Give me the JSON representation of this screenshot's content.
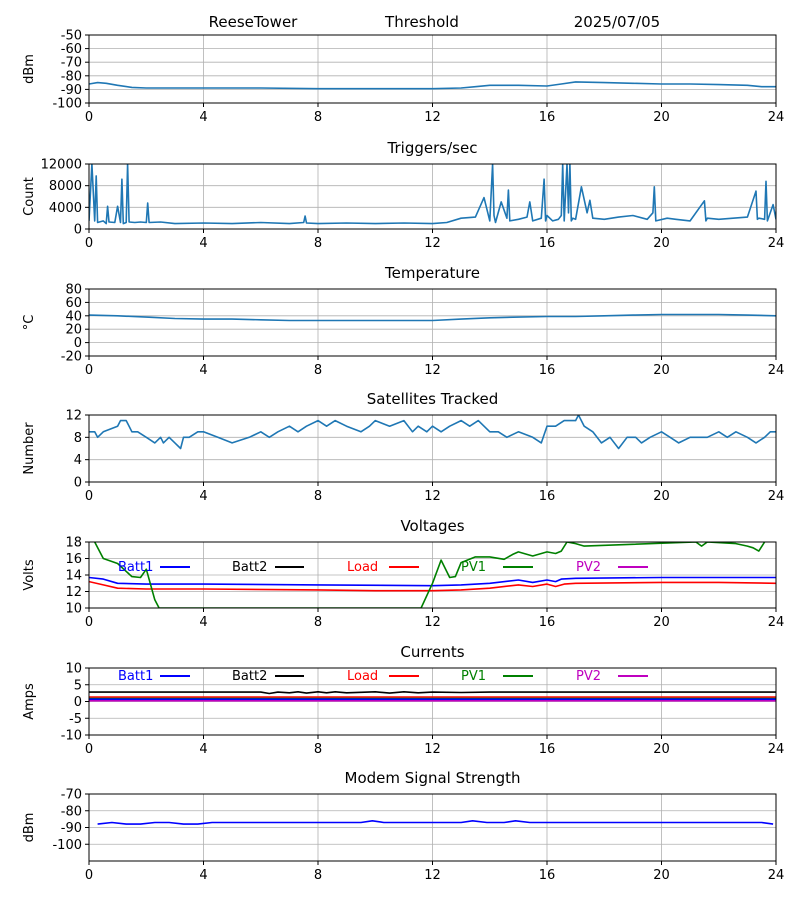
{
  "header": {
    "site": "ReeseTower",
    "label": "Threshold",
    "date": "2025/07/05"
  },
  "colors": {
    "default_line": "#1f77b4",
    "grid": "#b0b0b0",
    "Batt1": "#0000ff",
    "Batt2": "#000000",
    "Load": "#ff0000",
    "PV1": "#008000",
    "PV2": "#bf00bf"
  },
  "chart_data": [
    {
      "id": "threshold",
      "type": "line",
      "title": "",
      "ylabel": "dBm",
      "xlim": [
        0,
        24
      ],
      "ylim": [
        -100,
        -50
      ],
      "xticks": [
        "0",
        "4",
        "8",
        "12",
        "16",
        "20",
        "24"
      ],
      "yticks": [
        "-50",
        "-60",
        "-70",
        "-80",
        "-90",
        "-100"
      ],
      "ytick_values": [
        -50,
        -60,
        -70,
        -80,
        -90,
        -100
      ],
      "grid": true,
      "series": [
        {
          "color": "#1f77b4",
          "x": [
            0,
            0.3,
            0.6,
            1,
            1.5,
            2,
            3,
            4,
            6,
            8,
            10,
            12,
            13,
            13.5,
            14,
            15,
            16,
            16.5,
            17,
            18,
            19,
            20,
            21,
            22,
            23,
            23.5,
            24
          ],
          "y": [
            -86,
            -85,
            -85.5,
            -87,
            -88.5,
            -89,
            -89,
            -89,
            -89,
            -89.5,
            -89.5,
            -89.5,
            -89,
            -88,
            -87,
            -87,
            -87.5,
            -86,
            -84.5,
            -85,
            -85.5,
            -86,
            -86,
            -86.5,
            -87,
            -88,
            -88
          ]
        }
      ]
    },
    {
      "id": "triggers",
      "type": "line",
      "title": "Triggers/sec",
      "ylabel": "Count",
      "xlim": [
        0,
        24
      ],
      "ylim": [
        0,
        12000
      ],
      "xticks": [
        "0",
        "4",
        "8",
        "12",
        "16",
        "20",
        "24"
      ],
      "yticks": [
        "0",
        "4000",
        "8000",
        "12000"
      ],
      "ytick_values": [
        0,
        4000,
        8000,
        12000
      ],
      "grid": true,
      "series": [
        {
          "color": "#1f77b4",
          "x": [
            0,
            0.1,
            0.2,
            0.25,
            0.3,
            0.5,
            0.6,
            0.65,
            0.7,
            0.9,
            1.0,
            1.1,
            1.15,
            1.2,
            1.3,
            1.35,
            1.4,
            1.6,
            1.8,
            2.0,
            2.05,
            2.1,
            2.5,
            3,
            4,
            5,
            6,
            7,
            7.5,
            7.55,
            7.6,
            8,
            9,
            10,
            11,
            12,
            12.5,
            13,
            13.5,
            13.8,
            14.0,
            14.1,
            14.15,
            14.2,
            14.4,
            14.6,
            14.65,
            14.7,
            15.0,
            15.3,
            15.4,
            15.5,
            15.8,
            15.9,
            15.95,
            16.0,
            16.2,
            16.4,
            16.5,
            16.55,
            16.6,
            16.7,
            16.75,
            16.8,
            16.85,
            16.9,
            17.0,
            17.2,
            17.4,
            17.5,
            17.6,
            18,
            18.5,
            19,
            19.5,
            19.7,
            19.75,
            19.8,
            20.2,
            20.5,
            21,
            21.5,
            21.55,
            21.6,
            22,
            22.5,
            23,
            23.3,
            23.35,
            23.4,
            23.6,
            23.65,
            23.7,
            23.9,
            24
          ],
          "y": [
            1500,
            12000,
            1500,
            9800,
            1200,
            1500,
            1000,
            4200,
            1300,
            1200,
            4200,
            1200,
            9200,
            1000,
            1200,
            12000,
            1300,
            1200,
            1300,
            1200,
            4800,
            1200,
            1300,
            1000,
            1100,
            1000,
            1200,
            1000,
            1200,
            2400,
            1100,
            1000,
            1100,
            1000,
            1100,
            1000,
            1200,
            2000,
            2200,
            5800,
            1500,
            12000,
            2500,
            1200,
            5000,
            2000,
            7200,
            1500,
            1800,
            2200,
            5000,
            1500,
            2000,
            9200,
            1500,
            2500,
            1500,
            1800,
            2500,
            12000,
            1500,
            12000,
            3000,
            12000,
            1500,
            2000,
            1800,
            7800,
            3000,
            5300,
            2000,
            1800,
            2200,
            2500,
            1800,
            3000,
            7800,
            1500,
            2000,
            1800,
            1500,
            5200,
            1500,
            2000,
            1800,
            2000,
            2200,
            7000,
            1800,
            2000,
            1800,
            8800,
            1500,
            4500,
            1800
          ]
        }
      ]
    },
    {
      "id": "temperature",
      "type": "line",
      "title": "Temperature",
      "ylabel": "°C",
      "xlim": [
        0,
        24
      ],
      "ylim": [
        -20,
        80
      ],
      "xticks": [
        "0",
        "4",
        "8",
        "12",
        "16",
        "20",
        "24"
      ],
      "yticks": [
        "-20",
        "0",
        "20",
        "40",
        "60",
        "80"
      ],
      "ytick_values": [
        -20,
        0,
        20,
        40,
        60,
        80
      ],
      "grid": true,
      "series": [
        {
          "color": "#1f77b4",
          "x": [
            0,
            1,
            2,
            3,
            4,
            5,
            6,
            7,
            8,
            9,
            10,
            11,
            12,
            13,
            14,
            15,
            16,
            17,
            18,
            19,
            20,
            21,
            22,
            23,
            24
          ],
          "y": [
            41,
            40,
            38,
            36,
            35,
            35,
            34,
            33,
            33,
            33,
            33,
            33,
            33,
            35,
            37,
            38,
            39,
            39,
            40,
            41,
            42,
            42,
            42,
            41,
            40
          ]
        }
      ]
    },
    {
      "id": "satellites",
      "type": "line",
      "title": "Satellites Tracked",
      "ylabel": "Number",
      "xlim": [
        0,
        24
      ],
      "ylim": [
        0,
        12
      ],
      "xticks": [
        "0",
        "4",
        "8",
        "12",
        "16",
        "20",
        "24"
      ],
      "yticks": [
        "0",
        "4",
        "8",
        "12"
      ],
      "ytick_values": [
        0,
        4,
        8,
        12
      ],
      "grid": true,
      "series": [
        {
          "color": "#1f77b4",
          "x": [
            0,
            0.2,
            0.3,
            0.5,
            1.0,
            1.1,
            1.3,
            1.4,
            1.5,
            1.7,
            2.0,
            2.3,
            2.5,
            2.6,
            2.8,
            3.0,
            3.2,
            3.3,
            3.5,
            3.8,
            4.0,
            4.5,
            5.0,
            5.6,
            6.0,
            6.3,
            6.6,
            7.0,
            7.3,
            7.6,
            8.0,
            8.3,
            8.6,
            9.0,
            9.5,
            9.8,
            10.0,
            10.5,
            11.0,
            11.3,
            11.5,
            11.8,
            12.0,
            12.3,
            12.6,
            13.0,
            13.3,
            13.6,
            14.0,
            14.3,
            14.6,
            15.0,
            15.5,
            15.8,
            16.0,
            16.3,
            16.6,
            17.0,
            17.1,
            17.3,
            17.6,
            17.9,
            18.2,
            18.5,
            18.8,
            19.1,
            19.3,
            19.6,
            20.0,
            20.3,
            20.6,
            21.0,
            21.3,
            21.6,
            22.0,
            22.3,
            22.6,
            23.0,
            23.3,
            23.6,
            23.8,
            24
          ],
          "y": [
            9,
            9,
            8,
            9,
            10,
            11,
            11,
            10,
            9,
            9,
            8,
            7,
            8,
            7,
            8,
            7,
            6,
            8,
            8,
            9,
            9,
            8,
            7,
            8,
            9,
            8,
            9,
            10,
            9,
            10,
            11,
            10,
            11,
            10,
            9,
            10,
            11,
            10,
            11,
            9,
            10,
            9,
            10,
            9,
            10,
            11,
            10,
            11,
            9,
            9,
            8,
            9,
            8,
            7,
            10,
            10,
            11,
            11,
            12,
            10,
            9,
            7,
            8,
            6,
            8,
            8,
            7,
            8,
            9,
            8,
            7,
            8,
            8,
            8,
            9,
            8,
            9,
            8,
            7,
            8,
            9,
            9
          ]
        }
      ]
    },
    {
      "id": "voltages",
      "type": "line",
      "title": "Voltages",
      "ylabel": "Volts",
      "xlim": [
        0,
        24
      ],
      "ylim": [
        10,
        18
      ],
      "xticks": [
        "0",
        "4",
        "8",
        "12",
        "16",
        "20",
        "24"
      ],
      "yticks": [
        "10",
        "12",
        "14",
        "16",
        "18"
      ],
      "ytick_values": [
        10,
        12,
        14,
        16,
        18
      ],
      "grid": true,
      "legend": [
        "Batt1",
        "Batt2",
        "Load",
        "PV1",
        "PV2"
      ],
      "series": [
        {
          "name": "Batt1",
          "color": "#0000ff",
          "x": [
            0,
            0.5,
            1,
            2,
            4,
            8,
            12,
            13,
            14,
            15,
            15.5,
            16,
            16.3,
            16.5,
            17,
            20,
            24
          ],
          "y": [
            13.7,
            13.5,
            13.0,
            12.9,
            12.9,
            12.8,
            12.7,
            12.8,
            13.0,
            13.4,
            13.1,
            13.4,
            13.2,
            13.5,
            13.6,
            13.7,
            13.7
          ]
        },
        {
          "name": "Load",
          "color": "#ff0000",
          "x": [
            0,
            0.5,
            1,
            2,
            4,
            8,
            10,
            12,
            13,
            14,
            15,
            15.5,
            16,
            16.3,
            16.6,
            17,
            20,
            22,
            24
          ],
          "y": [
            13.2,
            12.8,
            12.4,
            12.3,
            12.3,
            12.2,
            12.1,
            12.1,
            12.2,
            12.4,
            12.8,
            12.6,
            12.9,
            12.6,
            12.9,
            13.0,
            13.1,
            13.1,
            13.0
          ]
        },
        {
          "name": "PV1",
          "color": "#008000",
          "x": [
            0.2,
            0.5,
            1.0,
            1.5,
            1.8,
            2.0,
            2.3,
            2.45,
            11.6,
            12.0,
            12.3,
            12.6,
            12.8,
            13.0,
            13.5,
            14.0,
            14.5,
            14.8,
            15.0,
            15.5,
            16.0,
            16.3,
            16.5,
            16.7,
            17.0,
            17.3,
            21.2,
            21.4,
            21.6,
            22.6,
            23.0,
            23.2,
            23.4,
            23.6
          ],
          "y": [
            18,
            16.0,
            15.4,
            13.8,
            13.7,
            14.7,
            11.0,
            10.0,
            10.0,
            13.0,
            15.8,
            13.7,
            13.8,
            15.5,
            16.2,
            16.2,
            15.9,
            16.5,
            16.8,
            16.3,
            16.8,
            16.6,
            16.9,
            18.0,
            17.8,
            17.5,
            18.0,
            17.5,
            18.0,
            17.8,
            17.5,
            17.3,
            16.9,
            18.0
          ]
        }
      ]
    },
    {
      "id": "currents",
      "type": "line",
      "title": "Currents",
      "ylabel": "Amps",
      "xlim": [
        0,
        24
      ],
      "ylim": [
        -10,
        10
      ],
      "xticks": [
        "0",
        "4",
        "8",
        "12",
        "16",
        "20",
        "24"
      ],
      "yticks": [
        "-10",
        "-5",
        "0",
        "5",
        "10"
      ],
      "ytick_values": [
        -10,
        -5,
        0,
        5,
        10
      ],
      "grid": true,
      "legend": [
        "Batt1",
        "Batt2",
        "Load",
        "PV1",
        "PV2"
      ],
      "series": [
        {
          "name": "Batt2",
          "color": "#000000",
          "x": [
            0,
            4,
            6,
            6.3,
            6.6,
            7,
            7.3,
            7.6,
            8,
            8.3,
            8.6,
            9,
            10,
            10.5,
            11,
            11.5,
            12,
            13,
            14,
            16,
            24
          ],
          "y": [
            2.8,
            2.8,
            2.8,
            2.4,
            2.8,
            2.6,
            2.9,
            2.5,
            2.9,
            2.6,
            2.9,
            2.6,
            2.9,
            2.5,
            2.9,
            2.6,
            2.8,
            2.7,
            2.8,
            2.8,
            2.8
          ]
        },
        {
          "name": "Load",
          "color": "#ff0000",
          "x": [
            0,
            24
          ],
          "y": [
            1.3,
            1.3
          ]
        },
        {
          "name": "PV1",
          "color": "#008000",
          "x": [
            0,
            24
          ],
          "y": [
            0.9,
            0.9
          ]
        },
        {
          "name": "Batt1",
          "color": "#0000ff",
          "x": [
            0,
            24
          ],
          "y": [
            0.7,
            0.7
          ]
        },
        {
          "name": "PV2",
          "color": "#bf00bf",
          "x": [
            0,
            24
          ],
          "y": [
            0.2,
            0.2
          ]
        }
      ]
    },
    {
      "id": "modem",
      "type": "line",
      "title": "Modem Signal Strength",
      "ylabel": "dBm",
      "xlim": [
        0,
        24
      ],
      "ylim": [
        -110,
        -70
      ],
      "xticks": [
        "0",
        "4",
        "8",
        "12",
        "16",
        "20",
        "24"
      ],
      "yticks": [
        "-70",
        "-80",
        "-90",
        "-100"
      ],
      "ytick_values": [
        -70,
        -80,
        -90,
        -100
      ],
      "grid": true,
      "series": [
        {
          "color": "#0000ff",
          "x": [
            0.3,
            0.8,
            1.3,
            1.8,
            2.3,
            2.8,
            3.3,
            3.8,
            4.3,
            5,
            6,
            7,
            8,
            9,
            9.5,
            9.9,
            10.3,
            11,
            12,
            13,
            13.4,
            13.9,
            14.5,
            14.9,
            15.4,
            16,
            17,
            18,
            19,
            20,
            21,
            22,
            23,
            23.5,
            23.9
          ],
          "y": [
            -88,
            -87,
            -88,
            -88,
            -87,
            -87,
            -88,
            -88,
            -87,
            -87,
            -87,
            -87,
            -87,
            -87,
            -87,
            -86,
            -87,
            -87,
            -87,
            -87,
            -86,
            -87,
            -87,
            -86,
            -87,
            -87,
            -87,
            -87,
            -87,
            -87,
            -87,
            -87,
            -87,
            -87,
            -88
          ]
        }
      ]
    }
  ]
}
